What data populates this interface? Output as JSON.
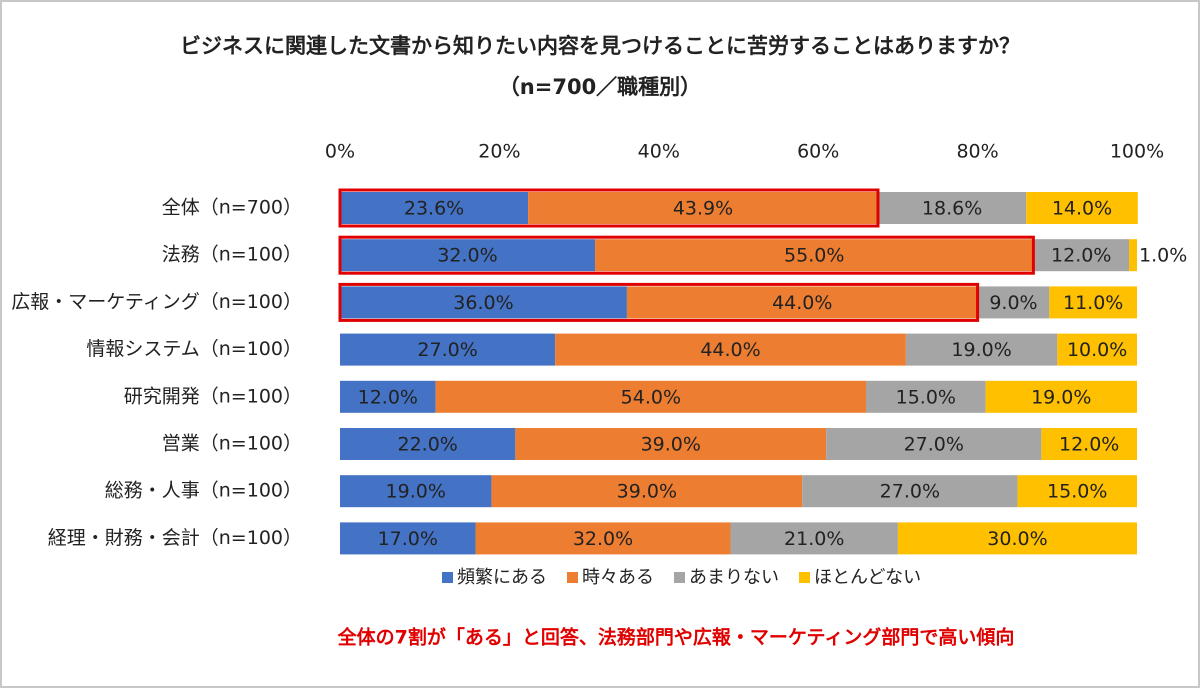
{
  "chart_data": {
    "type": "stacked-barh",
    "title": "ビジネスに関連した文書から知りたい内容を見つけることに苦労することはありますか？",
    "subtitle": "（n=700／職種別）",
    "annotation": "全体の7割が「ある」と回答、法務部門や広報・マーケティング部門で高い傾向",
    "categories": [
      "全体（n=700）",
      "法務（n=100）",
      "広報・マーケティング（n=100）",
      "情報システム（n=100）",
      "研究開発（n=100）",
      "営業（n=100）",
      "総務・人事（n=100）",
      "経理・財務・会計（n=100）"
    ],
    "series": [
      {
        "name": "頻繁にある",
        "color": "#4472c4",
        "values": [
          23.6,
          32.0,
          36.0,
          27.0,
          12.0,
          22.0,
          19.0,
          17.0
        ],
        "value_labels": [
          "23.6%",
          "32.0%",
          "36.0%",
          "27.0%",
          "12.0%",
          "22.0%",
          "19.0%",
          "17.0%"
        ]
      },
      {
        "name": "時々ある",
        "color": "#ed7d31",
        "values": [
          43.9,
          55.0,
          44.0,
          44.0,
          54.0,
          39.0,
          39.0,
          32.0
        ],
        "value_labels": [
          "43.9%",
          "55.0%",
          "44.0%",
          "44.0%",
          "54.0%",
          "39.0%",
          "39.0%",
          "32.0%"
        ]
      },
      {
        "name": "あまりない",
        "color": "#a5a5a5",
        "values": [
          18.6,
          12.0,
          9.0,
          19.0,
          15.0,
          27.0,
          27.0,
          21.0
        ],
        "value_labels": [
          "18.6%",
          "12.0%",
          "9.0%",
          "19.0%",
          "15.0%",
          "27.0%",
          "27.0%",
          "21.0%"
        ]
      },
      {
        "name": "ほとんどない",
        "color": "#ffc000",
        "values": [
          14.0,
          1.0,
          11.0,
          10.0,
          19.0,
          12.0,
          15.0,
          30.0
        ],
        "value_labels": [
          "14.0%",
          "1.0%",
          "11.0%",
          "10.0%",
          "19.0%",
          "12.0%",
          "15.0%",
          "30.0%"
        ]
      }
    ],
    "xlim": [
      0,
      100
    ],
    "xticks": [
      {
        "value": 0,
        "label": "0%"
      },
      {
        "value": 20,
        "label": "20%"
      },
      {
        "value": 40,
        "label": "40%"
      },
      {
        "value": 60,
        "label": "60%"
      },
      {
        "value": 80,
        "label": "80%"
      },
      {
        "value": 100,
        "label": "100%"
      }
    ],
    "legend": "bottom"
  }
}
